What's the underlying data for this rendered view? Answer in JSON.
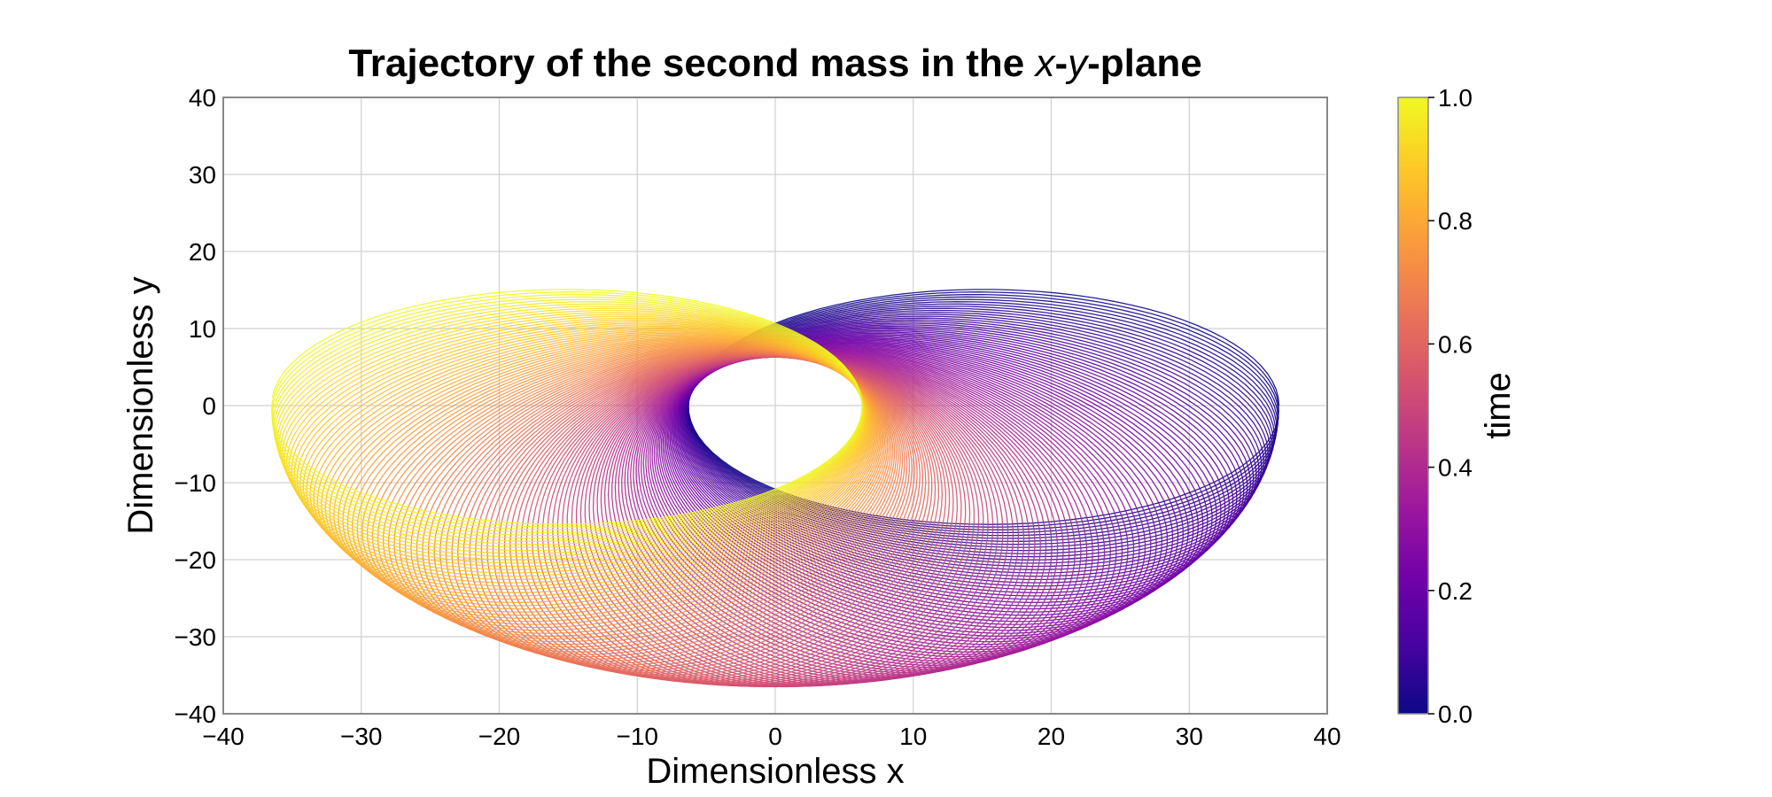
{
  "chart_data": {
    "type": "line",
    "title": {
      "prefix": "Trajectory of the second mass in the ",
      "var_x": "x",
      "dash": "-",
      "var_y": "y",
      "suffix": "-plane"
    },
    "xlabel": "Dimensionless x",
    "ylabel": "Dimensionless y",
    "xlim": [
      -40,
      40
    ],
    "ylim": [
      -40,
      40
    ],
    "xticks": [
      -40,
      -30,
      -20,
      -10,
      0,
      10,
      20,
      30,
      40
    ],
    "yticks": [
      -40,
      -30,
      -20,
      -10,
      0,
      10,
      20,
      30,
      40
    ],
    "xtick_labels": [
      "−40",
      "−30",
      "−20",
      "−10",
      "0",
      "10",
      "20",
      "30",
      "40"
    ],
    "ytick_labels": [
      "−40",
      "−30",
      "−20",
      "−10",
      "0",
      "10",
      "20",
      "30",
      "40"
    ],
    "grid": true,
    "trajectory": {
      "shape": "precessing-ellipse",
      "outer_radius": 36.5,
      "inner_hole_radius_x": 6.3,
      "inner_hole_radius_y": 6.3,
      "color_by": "time"
    },
    "colorbar": {
      "label": "time",
      "colormap": "plasma",
      "range": [
        0,
        1
      ],
      "ticks": [
        0.0,
        0.2,
        0.4,
        0.6,
        0.8,
        1.0
      ],
      "tick_labels": [
        "0.0",
        "0.2",
        "0.4",
        "0.6",
        "0.8",
        "1.0"
      ],
      "colormap_stops": [
        "#0d0887",
        "#46039f",
        "#7201a8",
        "#9c179e",
        "#bd3786",
        "#d8576b",
        "#ed7953",
        "#fb9f3a",
        "#fdca26",
        "#f0f921"
      ]
    }
  }
}
